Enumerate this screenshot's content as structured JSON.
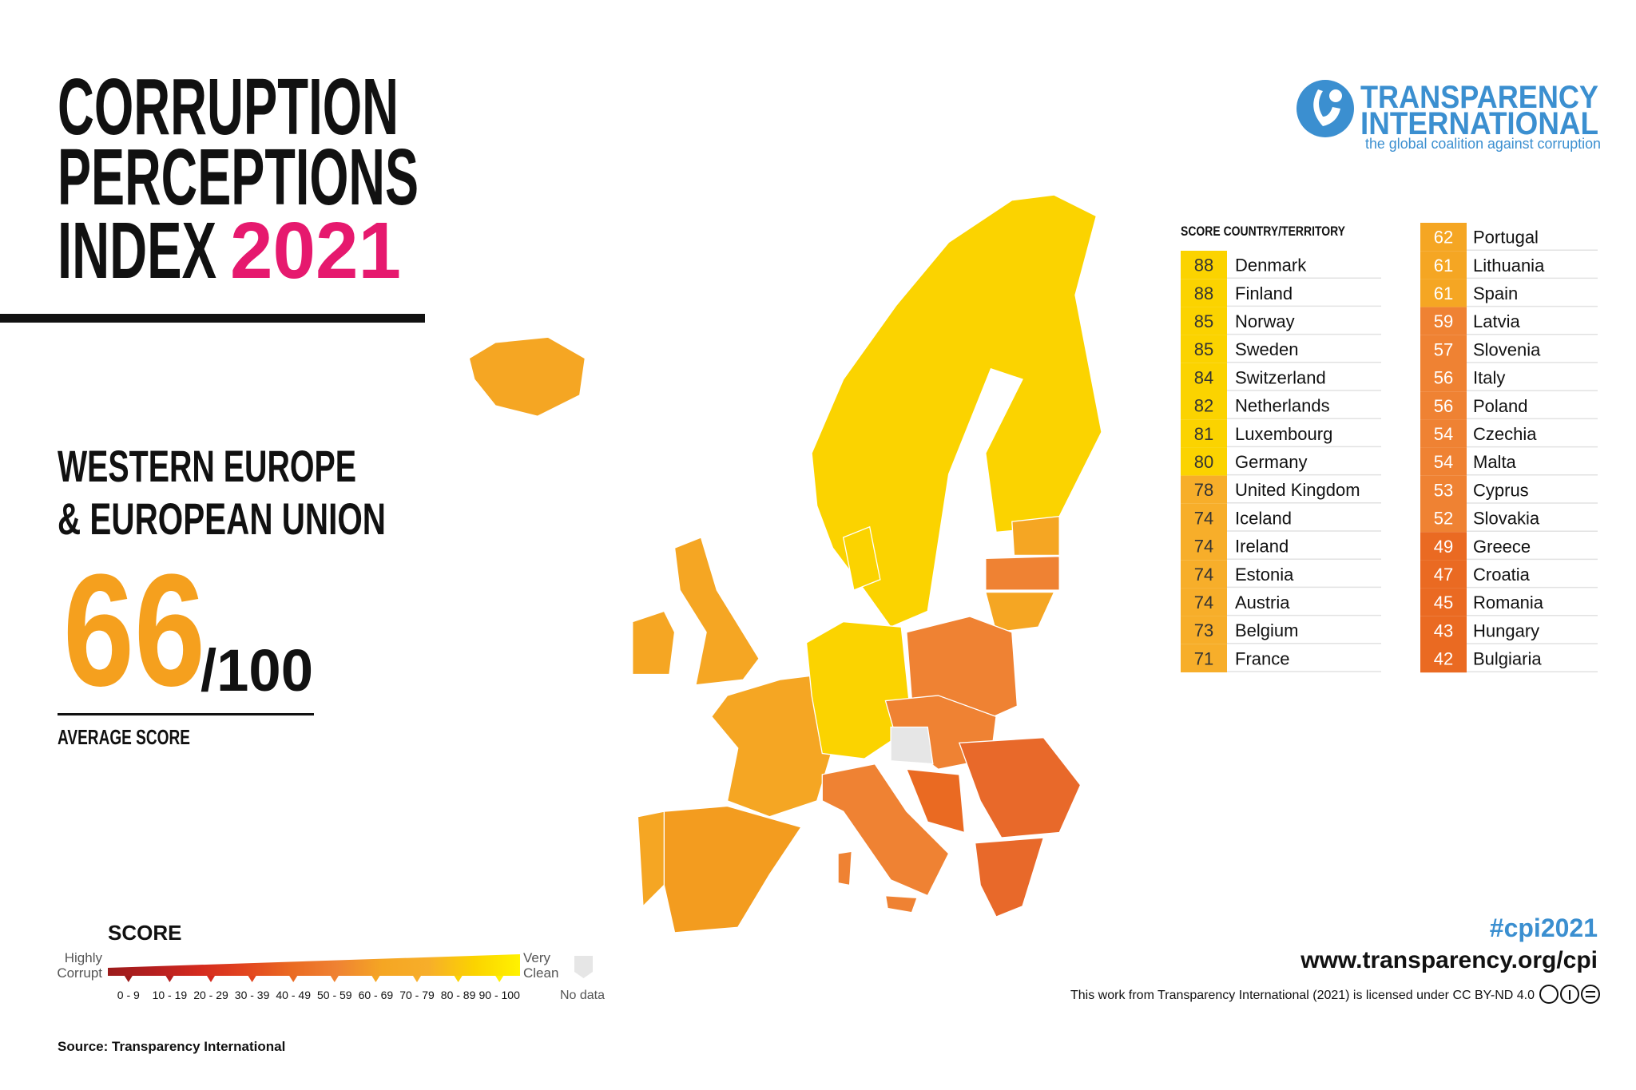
{
  "header": {
    "title_lines": [
      "CORRUPTION",
      "PERCEPTIONS",
      "INDEX"
    ],
    "year": "2021"
  },
  "logo": {
    "name_lines": [
      "TRANSPARENCY",
      "INTERNATIONAL"
    ],
    "tagline": "the global coalition against corruption"
  },
  "region": {
    "lines": [
      "WESTERN EUROPE",
      "& EUROPEAN UNION"
    ],
    "score": 66,
    "out_of": "/100",
    "caption": "AVERAGE SCORE"
  },
  "table": {
    "header": "SCORE COUNTRY/TERRITORY",
    "rows": [
      [
        88,
        "Denmark"
      ],
      [
        88,
        "Finland"
      ],
      [
        85,
        "Norway"
      ],
      [
        85,
        "Sweden"
      ],
      [
        84,
        "Switzerland"
      ],
      [
        82,
        "Netherlands"
      ],
      [
        81,
        "Luxembourg"
      ],
      [
        80,
        "Germany"
      ],
      [
        78,
        "United Kingdom"
      ],
      [
        74,
        "Iceland"
      ],
      [
        74,
        "Ireland"
      ],
      [
        74,
        "Estonia"
      ],
      [
        74,
        "Austria"
      ],
      [
        73,
        "Belgium"
      ],
      [
        71,
        "France"
      ],
      [
        62,
        "Portugal"
      ],
      [
        61,
        "Lithuania"
      ],
      [
        61,
        "Spain"
      ],
      [
        59,
        "Latvia"
      ],
      [
        57,
        "Slovenia"
      ],
      [
        56,
        "Italy"
      ],
      [
        56,
        "Poland"
      ],
      [
        54,
        "Czechia"
      ],
      [
        54,
        "Malta"
      ],
      [
        53,
        "Cyprus"
      ],
      [
        52,
        "Slovakia"
      ],
      [
        49,
        "Greece"
      ],
      [
        47,
        "Croatia"
      ],
      [
        45,
        "Romania"
      ],
      [
        43,
        "Hungary"
      ],
      [
        42,
        "Bulgiaria"
      ]
    ]
  },
  "legend": {
    "title": "SCORE",
    "low": [
      "Highly",
      "Corrupt"
    ],
    "high": [
      "Very",
      "Clean"
    ],
    "bins": [
      {
        "label": "0 - 9",
        "color": "#9b1b1b"
      },
      {
        "label": "10 - 19",
        "color": "#b51f1f"
      },
      {
        "label": "20 - 29",
        "color": "#d42a1e"
      },
      {
        "label": "30 - 39",
        "color": "#e2451f"
      },
      {
        "label": "40 - 49",
        "color": "#ea6a22"
      },
      {
        "label": "50 - 59",
        "color": "#ef8233"
      },
      {
        "label": "60 - 69",
        "color": "#f5a623"
      },
      {
        "label": "70 - 79",
        "color": "#f7ae2a"
      },
      {
        "label": "80 - 89",
        "color": "#fbd300"
      },
      {
        "label": "90 - 100",
        "color": "#fff200"
      }
    ],
    "no_data": "No data"
  },
  "footer": {
    "hashtag": "#cpi2021",
    "url": "www.transparency.org/cpi",
    "license": "This work from Transparency International (2021) is licensed under CC BY-ND 4.0",
    "source": "Source: Transparency International"
  }
}
